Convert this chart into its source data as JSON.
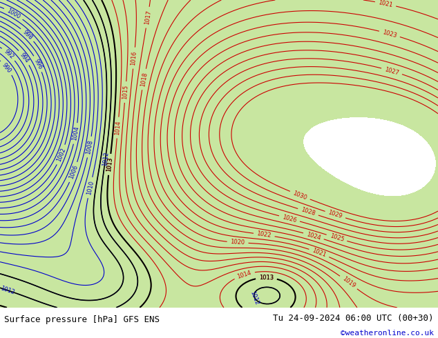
{
  "title_left": "Surface pressure [hPa] GFS ENS",
  "title_right": "Tu 24-09-2024 06:00 UTC (00+30)",
  "copyright": "©weatheronline.co.uk",
  "bg_map_color": "#c8e6a0",
  "land_color": "#c8e6a0",
  "sea_color": "#d8ecd8",
  "footer_bg": "#e8e8e8",
  "contour_color_red": "#cc0000",
  "contour_color_blue": "#0000cc",
  "contour_color_black": "#000000",
  "label_color_red": "#cc0000",
  "label_color_blue": "#0000cc",
  "label_color_black": "#000000",
  "figsize": [
    6.34,
    4.9
  ],
  "dpi": 100
}
